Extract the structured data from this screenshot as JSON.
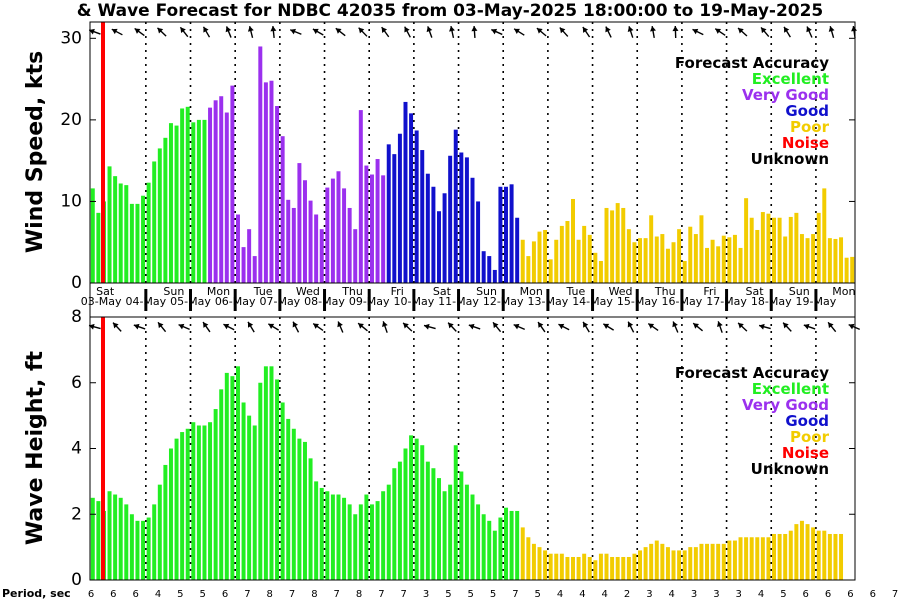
{
  "title": "& Wave Forecast for NDBC 42035 from 03-May-2025 18:00:00 to 19-May-2025",
  "colors": {
    "excellent": "#22ee22",
    "very_good": "#9b30ee",
    "good": "#1010cc",
    "poor": "#f2cc00",
    "noise": "#ff0000",
    "unknown": "#000000"
  },
  "legend": {
    "title": "Forecast Accuracy",
    "items": [
      {
        "label": "Excellent",
        "color": "#22ee22"
      },
      {
        "label": "Very Good",
        "color": "#9b30ee"
      },
      {
        "label": "Good",
        "color": "#1010cc"
      },
      {
        "label": "Poor",
        "color": "#f2cc00"
      },
      {
        "label": "Noise",
        "color": "#ff0000"
      },
      {
        "label": "Unknown",
        "color": "#000000"
      }
    ]
  },
  "days": [
    "Sat",
    "Sun",
    "Mon",
    "Tue",
    "Wed",
    "Thu",
    "Fri",
    "Sat",
    "Sun",
    "Mon",
    "Tue",
    "Wed",
    "Thu",
    "Fri",
    "Sat",
    "Sun",
    "Mon"
  ],
  "dates": [
    "03-May",
    "04-May",
    "05-May",
    "06-May",
    "07-May",
    "08-May",
    "09-May",
    "10-May",
    "11-May",
    "12-May",
    "13-May",
    "14-May",
    "15-May",
    "16-May",
    "17-May",
    "18-May",
    "19-May"
  ],
  "period_label": "Period, sec",
  "periods": [
    "6",
    "6",
    "6",
    "4",
    "5",
    "5",
    "6",
    "7",
    "8",
    "7",
    "8",
    "7",
    "8",
    "7",
    "7",
    "3",
    "5",
    "5",
    "5",
    "7",
    "5",
    "4",
    "4",
    "4",
    "2",
    "3",
    "4",
    "3",
    "3",
    "3",
    "4",
    "5",
    "6",
    "6",
    "6",
    "6",
    "7"
  ],
  "chart_data": [
    {
      "type": "bar",
      "ylabel": "Wind Speed, kts",
      "ylim": [
        0,
        32
      ],
      "yticks": [
        "0",
        "10",
        "20",
        "30"
      ],
      "x_start": "03-May 18:00",
      "x_step_hours": 3,
      "values": [
        11.6,
        8.6,
        10.0,
        14.3,
        13.1,
        12.2,
        12.0,
        9.7,
        9.7,
        10.7,
        12.3,
        14.9,
        16.5,
        17.8,
        19.6,
        19.3,
        21.4,
        21.6,
        19.7,
        20.0,
        20.0,
        21.5,
        22.4,
        22.9,
        20.9,
        24.2,
        8.4,
        4.4,
        6.6,
        3.3,
        29.0,
        24.6,
        24.8,
        21.7,
        18.0,
        10.2,
        9.2,
        14.7,
        12.6,
        10.1,
        8.4,
        6.6,
        11.7,
        12.8,
        13.7,
        11.6,
        9.2,
        6.6,
        21.2,
        14.4,
        13.3,
        15.2,
        13.2,
        17.0,
        15.8,
        18.3,
        22.2,
        20.8,
        18.7,
        16.3,
        13.4,
        11.8,
        8.8,
        11.0,
        15.6,
        18.8,
        16.0,
        15.4,
        12.9,
        10.0,
        3.9,
        3.3,
        1.6,
        11.8,
        11.8,
        12.1,
        8.0,
        5.3,
        3.3,
        5.1,
        6.3,
        6.5,
        2.9,
        5.3,
        7.0,
        7.6,
        10.3,
        5.3,
        7.0,
        5.9,
        3.7,
        2.7,
        9.2,
        8.9,
        9.8,
        9.2,
        6.6,
        5.0,
        5.5,
        5.5,
        8.3,
        5.7,
        6.0,
        4.2,
        5.0,
        6.6,
        2.7,
        6.9,
        6.0,
        8.3,
        4.3,
        5.3,
        4.5,
        5.8,
        5.6,
        5.9,
        4.3,
        10.4,
        8.0,
        6.5,
        8.7,
        8.5,
        8.0,
        8.0,
        5.7,
        8.1,
        8.6,
        6.0,
        5.5,
        6.0,
        8.6,
        11.6,
        5.5,
        5.4,
        5.6,
        3.1,
        3.2
      ],
      "classes": [
        "E",
        "E",
        "E",
        "E",
        "E",
        "E",
        "E",
        "E",
        "E",
        "E",
        "E",
        "E",
        "E",
        "E",
        "E",
        "E",
        "E",
        "E",
        "E",
        "E",
        "E",
        "V",
        "V",
        "V",
        "V",
        "V",
        "V",
        "V",
        "V",
        "V",
        "V",
        "V",
        "V",
        "V",
        "V",
        "V",
        "V",
        "V",
        "V",
        "V",
        "V",
        "V",
        "V",
        "V",
        "V",
        "V",
        "V",
        "V",
        "V",
        "V",
        "V",
        "V",
        "V",
        "G",
        "G",
        "G",
        "G",
        "G",
        "G",
        "G",
        "G",
        "G",
        "G",
        "G",
        "G",
        "G",
        "G",
        "G",
        "G",
        "G",
        "G",
        "G",
        "G",
        "G",
        "G",
        "G",
        "G",
        "P",
        "P",
        "P",
        "P",
        "P",
        "P",
        "P",
        "P",
        "P",
        "P",
        "P",
        "P",
        "P",
        "P",
        "P",
        "P",
        "P",
        "P",
        "P",
        "P",
        "P",
        "P",
        "P",
        "P",
        "P",
        "P",
        "P",
        "P",
        "P",
        "P",
        "P",
        "P",
        "P",
        "P",
        "P",
        "P",
        "P",
        "P",
        "P",
        "P",
        "P",
        "P",
        "P",
        "P",
        "P",
        "P",
        "P",
        "P",
        "P",
        "P",
        "P",
        "P",
        "P",
        "P",
        "P",
        "P",
        "P",
        "P",
        "P",
        "P"
      ]
    },
    {
      "type": "bar",
      "ylabel": "Wave Height, ft",
      "ylim": [
        0,
        8
      ],
      "yticks": [
        "0",
        "2",
        "4",
        "6",
        "8"
      ],
      "x_start": "03-May 18:00",
      "x_step_hours": 3,
      "values": [
        2.5,
        2.4,
        2.1,
        2.7,
        2.6,
        2.5,
        2.3,
        2.0,
        1.8,
        1.8,
        1.9,
        2.3,
        2.9,
        3.5,
        4.0,
        4.3,
        4.5,
        4.6,
        4.8,
        4.7,
        4.7,
        4.8,
        5.2,
        5.8,
        6.3,
        6.2,
        6.5,
        5.4,
        5.0,
        4.7,
        6.0,
        6.5,
        6.5,
        6.1,
        5.4,
        4.9,
        4.6,
        4.3,
        4.2,
        3.7,
        3.0,
        2.8,
        2.7,
        2.6,
        2.6,
        2.5,
        2.3,
        2.0,
        2.3,
        2.6,
        2.3,
        2.4,
        2.7,
        2.9,
        3.4,
        3.6,
        4.0,
        4.4,
        4.3,
        4.1,
        3.6,
        3.4,
        3.1,
        2.7,
        2.9,
        4.1,
        3.3,
        2.9,
        2.6,
        2.3,
        2.0,
        1.8,
        1.5,
        1.9,
        2.2,
        2.1,
        2.1,
        1.6,
        1.3,
        1.1,
        1.0,
        0.9,
        0.8,
        0.8,
        0.8,
        0.7,
        0.7,
        0.7,
        0.8,
        0.7,
        0.6,
        0.8,
        0.8,
        0.7,
        0.7,
        0.7,
        0.7,
        0.8,
        0.9,
        1.0,
        1.1,
        1.2,
        1.1,
        1.0,
        0.9,
        0.9,
        0.9,
        1.0,
        1.0,
        1.1,
        1.1,
        1.1,
        1.1,
        1.1,
        1.2,
        1.2,
        1.3,
        1.3,
        1.3,
        1.3,
        1.3,
        1.3,
        1.4,
        1.4,
        1.4,
        1.5,
        1.7,
        1.8,
        1.7,
        1.6,
        1.5,
        1.5,
        1.4,
        1.4,
        1.4
      ],
      "classes": [
        "E",
        "E",
        "E",
        "E",
        "E",
        "E",
        "E",
        "E",
        "E",
        "E",
        "E",
        "E",
        "E",
        "E",
        "E",
        "E",
        "E",
        "E",
        "E",
        "E",
        "E",
        "E",
        "E",
        "E",
        "E",
        "E",
        "E",
        "E",
        "E",
        "E",
        "E",
        "E",
        "E",
        "E",
        "E",
        "E",
        "E",
        "E",
        "E",
        "E",
        "E",
        "E",
        "E",
        "E",
        "E",
        "E",
        "E",
        "E",
        "E",
        "E",
        "E",
        "E",
        "E",
        "E",
        "E",
        "E",
        "E",
        "E",
        "E",
        "E",
        "E",
        "E",
        "E",
        "E",
        "E",
        "E",
        "E",
        "E",
        "E",
        "E",
        "E",
        "E",
        "E",
        "E",
        "E",
        "E",
        "E",
        "P",
        "P",
        "P",
        "P",
        "P",
        "P",
        "P",
        "P",
        "P",
        "P",
        "P",
        "P",
        "P",
        "P",
        "P",
        "P",
        "P",
        "P",
        "P",
        "P",
        "P",
        "P",
        "P",
        "P",
        "P",
        "P",
        "P",
        "P",
        "P",
        "P",
        "P",
        "P",
        "P",
        "P",
        "P",
        "P",
        "P",
        "P",
        "P",
        "P",
        "P",
        "P",
        "P",
        "P",
        "P",
        "P",
        "P",
        "P",
        "P",
        "P",
        "P",
        "P",
        "P",
        "P",
        "P",
        "P",
        "P",
        "P",
        "P",
        "P"
      ]
    }
  ]
}
